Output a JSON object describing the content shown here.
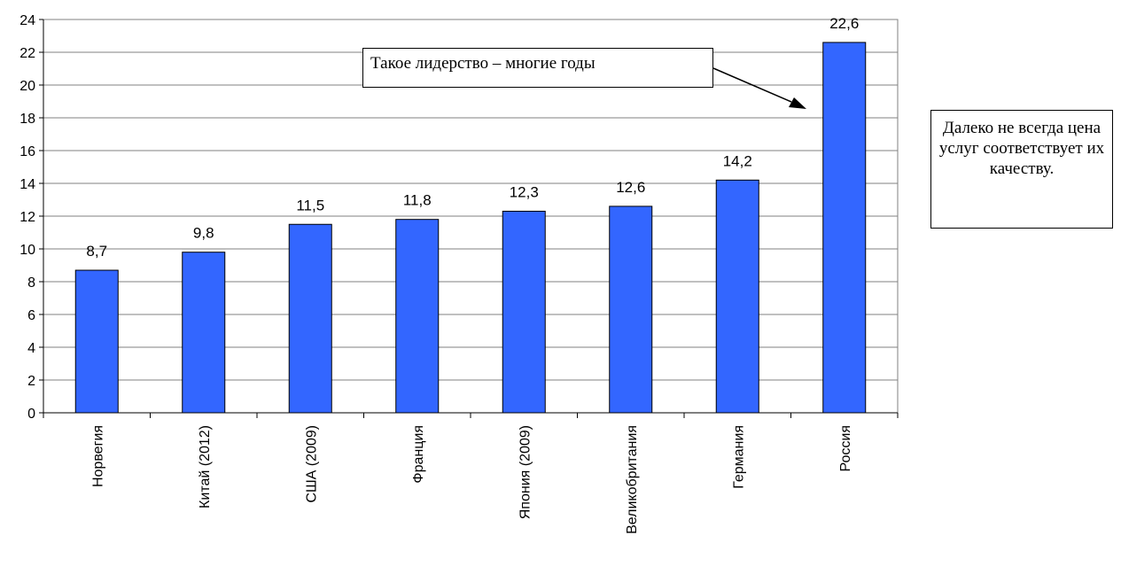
{
  "chart_data": {
    "type": "bar",
    "categories": [
      "Норвегия",
      "Китай (2012)",
      "США (2009)",
      "Франция",
      "Япония (2009)",
      "Великобритания",
      "Германия",
      "Россия"
    ],
    "values": [
      8.7,
      9.8,
      11.5,
      11.8,
      12.3,
      12.6,
      14.2,
      22.6
    ],
    "value_labels": [
      "8,7",
      "9,8",
      "11,5",
      "11,8",
      "12,3",
      "12,6",
      "14,2",
      "22,6"
    ],
    "y_ticks": [
      "0",
      "2",
      "4",
      "6",
      "8",
      "10",
      "12",
      "14",
      "16",
      "18",
      "20",
      "22",
      "24"
    ],
    "ylim": [
      0,
      24
    ],
    "title": "",
    "xlabel": "",
    "ylabel": "",
    "grid": true,
    "bar_color": "#3366ff",
    "annotations": {
      "callout": "Такое лидерство – многие годы",
      "side_note": "Далеко не всегда цена услуг соответствует их качеству."
    }
  }
}
